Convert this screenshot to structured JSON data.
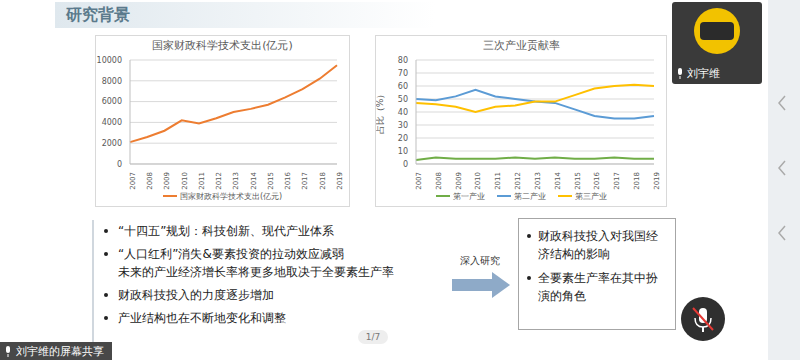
{
  "header": {
    "title": "研究背景"
  },
  "chart_data": [
    {
      "type": "line",
      "title": "国家财政科学技术支出(亿元)",
      "categories": [
        "2007",
        "2008",
        "2009",
        "2010",
        "2011",
        "2012",
        "2013",
        "2014",
        "2015",
        "2016",
        "2017",
        "2018",
        "2019"
      ],
      "series": [
        {
          "name": "国家财政科学技术支出(亿元)",
          "color": "#ed7d31",
          "values": [
            2100,
            2600,
            3200,
            4200,
            3900,
            4400,
            5000,
            5300,
            5700,
            6400,
            7200,
            8200,
            9500
          ]
        }
      ],
      "ylim": [
        0,
        10000
      ],
      "yticks": [
        0,
        2000,
        4000,
        6000,
        8000,
        10000
      ],
      "grid": true,
      "legend": "bottom"
    },
    {
      "type": "line",
      "title": "三次产业贡献率",
      "y_label": "占比（%）",
      "categories": [
        "2007",
        "2008",
        "2009",
        "2010",
        "2011",
        "2012",
        "2013",
        "2014",
        "2015",
        "2016",
        "2017",
        "2018",
        "2019"
      ],
      "series": [
        {
          "name": "第一产业",
          "color": "#70ad47",
          "values": [
            3,
            5,
            4,
            4,
            4,
            5,
            4,
            5,
            4,
            4,
            5,
            4,
            4
          ]
        },
        {
          "name": "第二产业",
          "color": "#5b9bd5",
          "values": [
            50,
            49,
            52,
            57,
            52,
            50,
            48,
            47,
            42,
            37,
            35,
            35,
            37
          ]
        },
        {
          "name": "第三产业",
          "color": "#ffc000",
          "values": [
            47,
            46,
            44,
            40,
            44,
            45,
            48,
            48,
            53,
            58,
            60,
            61,
            60
          ]
        }
      ],
      "ylim": [
        0,
        80
      ],
      "yticks": [
        0,
        10,
        20,
        30,
        40,
        50,
        60,
        70,
        80
      ],
      "grid": true,
      "legend": "bottom"
    }
  ],
  "bullets": [
    {
      "lines": [
        "“十四五”规划：科技创新、现代产业体系"
      ]
    },
    {
      "lines": [
        "“人口红利”消失&要素投资的拉动效应减弱",
        "未来的产业经济增长率将更多地取决于全要素生产率"
      ]
    },
    {
      "lines": [
        "财政科技投入的力度逐步增加"
      ]
    },
    {
      "lines": [
        "产业结构也在不断地变化和调整"
      ]
    }
  ],
  "arrow_label": "深入研究",
  "conclusions": [
    "财政科技投入对我国经济结构的影响",
    "全要素生产率在其中扮演的角色"
  ],
  "page": "1/7",
  "participant": {
    "name": "刘宇维"
  },
  "share_label": "刘宇维的屏幕共享"
}
